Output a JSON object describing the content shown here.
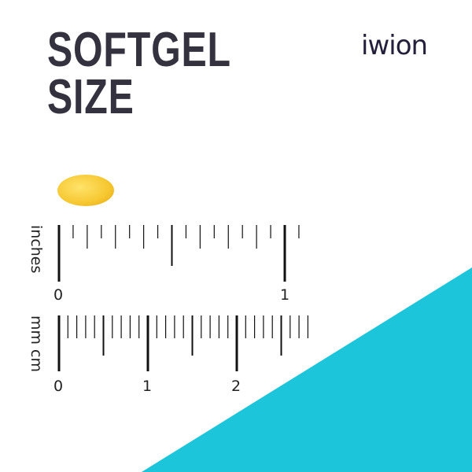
{
  "title": {
    "line1": "SOFTGEL",
    "line2": "SIZE"
  },
  "logo": "iwion",
  "colors": {
    "accent": "#1cc5d9",
    "title": "#35323f",
    "softgel": "#f6c730"
  },
  "rulers": {
    "inches": {
      "unit_label": "inches",
      "labels": [
        "0",
        "1"
      ]
    },
    "metric": {
      "unit_label": "mm cm",
      "labels": [
        "0",
        "1",
        "2"
      ]
    }
  }
}
